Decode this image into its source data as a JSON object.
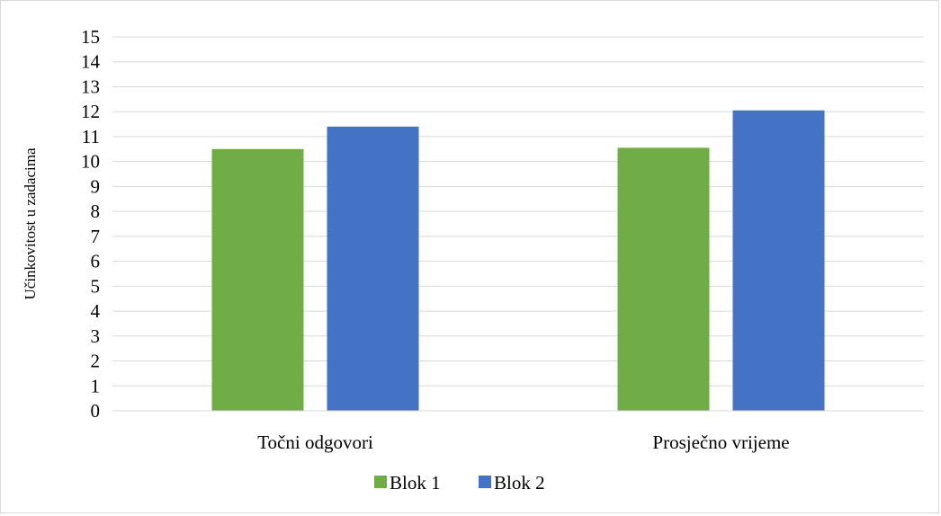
{
  "chart_data": {
    "type": "bar",
    "title": "",
    "xlabel": "",
    "ylabel": "Učinkovitost u zadacima",
    "ylim": [
      0,
      15
    ],
    "yticks": [
      0,
      1,
      2,
      3,
      4,
      5,
      6,
      7,
      8,
      9,
      10,
      11,
      12,
      13,
      14,
      15
    ],
    "grid": true,
    "legend_position": "bottom",
    "categories": [
      "Točni odgovori",
      "Prosječno vrijeme"
    ],
    "series": [
      {
        "name": "Blok 1",
        "color": "#70ad47",
        "values": [
          10.5,
          10.55
        ]
      },
      {
        "name": "Blok 2",
        "color": "#4472c4",
        "values": [
          11.4,
          12.05
        ]
      }
    ]
  }
}
